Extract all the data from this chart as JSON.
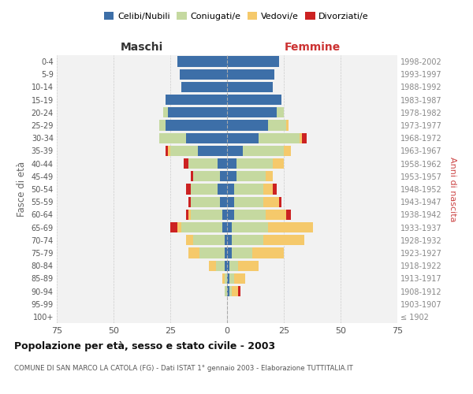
{
  "age_groups": [
    "100+",
    "95-99",
    "90-94",
    "85-89",
    "80-84",
    "75-79",
    "70-74",
    "65-69",
    "60-64",
    "55-59",
    "50-54",
    "45-49",
    "40-44",
    "35-39",
    "30-34",
    "25-29",
    "20-24",
    "15-19",
    "10-14",
    "5-9",
    "0-4"
  ],
  "birth_years": [
    "≤ 1902",
    "1903-1907",
    "1908-1912",
    "1913-1917",
    "1918-1922",
    "1923-1927",
    "1928-1932",
    "1933-1937",
    "1938-1942",
    "1943-1947",
    "1948-1952",
    "1953-1957",
    "1958-1962",
    "1963-1967",
    "1968-1972",
    "1973-1977",
    "1978-1982",
    "1983-1987",
    "1988-1992",
    "1993-1997",
    "1998-2002"
  ],
  "males": {
    "celibe": [
      0,
      0,
      0,
      0,
      1,
      1,
      1,
      2,
      2,
      3,
      4,
      3,
      4,
      13,
      18,
      27,
      26,
      27,
      20,
      21,
      22
    ],
    "coniugato": [
      0,
      0,
      1,
      1,
      4,
      11,
      14,
      18,
      14,
      13,
      12,
      12,
      13,
      12,
      12,
      3,
      2,
      0,
      0,
      0,
      0
    ],
    "vedovo": [
      0,
      0,
      0,
      1,
      3,
      5,
      3,
      2,
      1,
      0,
      0,
      0,
      0,
      1,
      0,
      0,
      0,
      0,
      0,
      0,
      0
    ],
    "divorziato": [
      0,
      0,
      0,
      0,
      0,
      0,
      0,
      3,
      1,
      1,
      2,
      1,
      2,
      1,
      0,
      0,
      0,
      0,
      0,
      0,
      0
    ]
  },
  "females": {
    "nubile": [
      0,
      0,
      1,
      1,
      1,
      2,
      2,
      2,
      3,
      3,
      3,
      4,
      4,
      7,
      14,
      18,
      22,
      24,
      20,
      21,
      23
    ],
    "coniugata": [
      0,
      0,
      1,
      2,
      4,
      9,
      14,
      16,
      14,
      13,
      13,
      13,
      16,
      18,
      18,
      8,
      3,
      0,
      0,
      0,
      0
    ],
    "vedova": [
      0,
      0,
      3,
      5,
      9,
      14,
      18,
      20,
      9,
      7,
      4,
      3,
      5,
      3,
      1,
      1,
      0,
      0,
      0,
      0,
      0
    ],
    "divorziata": [
      0,
      0,
      1,
      0,
      0,
      0,
      0,
      0,
      2,
      1,
      2,
      0,
      0,
      0,
      2,
      0,
      0,
      0,
      0,
      0,
      0
    ]
  },
  "colors": {
    "celibe": "#3d6fa8",
    "coniugato": "#c5d9a0",
    "vedovo": "#f5c96b",
    "divorziato": "#cc2222"
  },
  "xlim": 75,
  "title": "Popolazione per età, sesso e stato civile - 2003",
  "subtitle": "COMUNE DI SAN MARCO LA CATOLA (FG) - Dati ISTAT 1° gennaio 2003 - Elaborazione TUTTITALIA.IT",
  "ylabel_left": "Fasce di età",
  "ylabel_right": "Anni di nascita",
  "xlabel_males": "Maschi",
  "xlabel_females": "Femmine",
  "legend_labels": [
    "Celibi/Nubili",
    "Coniugati/e",
    "Vedovi/e",
    "Divorziati/e"
  ],
  "bg_color": "#f2f2f2",
  "grid_color": "#cccccc"
}
